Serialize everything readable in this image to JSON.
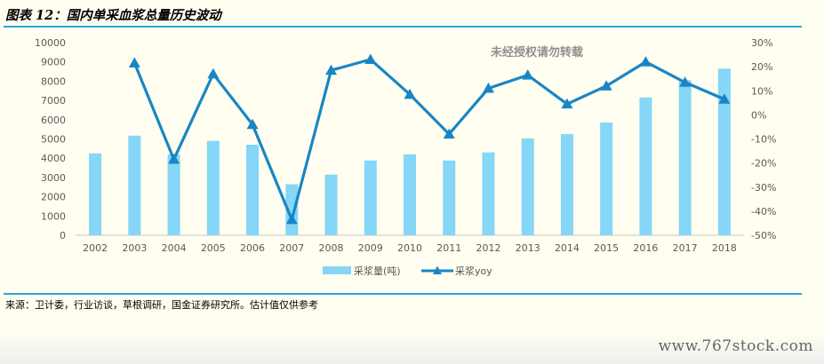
{
  "title": "图表 12：国内单采血浆总量历史波动",
  "source_note": "来源：卫计委，行业访谈，草根调研，国金证券研究所。估计值仅供参考",
  "watermark": "未经授权请勿转载",
  "site_watermark": "www.767stock.com",
  "colors": {
    "bar": "#85d6f7",
    "line": "#1886c6",
    "rule": "#2aa7df"
  },
  "chart_data": {
    "type": "bar+line",
    "categories": [
      "2002",
      "2003",
      "2004",
      "2005",
      "2006",
      "2007",
      "2008",
      "2009",
      "2010",
      "2011",
      "2012",
      "2013",
      "2014",
      "2015",
      "2016",
      "2017",
      "2018"
    ],
    "y_left_ticks": [
      "0",
      "1000",
      "2000",
      "3000",
      "4000",
      "5000",
      "6000",
      "7000",
      "8000",
      "9000",
      "10000"
    ],
    "y_left_range": [
      0,
      10000
    ],
    "y_right_ticks": [
      "-50%",
      "-40%",
      "-30%",
      "-20%",
      "-10%",
      "0%",
      "10%",
      "20%",
      "30%"
    ],
    "y_right_range": [
      -50,
      30
    ],
    "series": [
      {
        "name": "采浆量(吨)",
        "kind": "bar",
        "axis": "left",
        "values": [
          4250,
          5170,
          4200,
          4900,
          4700,
          2650,
          3150,
          3880,
          4200,
          3880,
          4300,
          5020,
          5250,
          5850,
          7150,
          8050,
          8650
        ]
      },
      {
        "name": "采浆yoy",
        "kind": "line",
        "axis": "right",
        "marker": "triangle",
        "values": [
          null,
          21.5,
          -18.5,
          17,
          -4,
          -43.5,
          18.5,
          23,
          8.5,
          -8,
          11,
          16.5,
          4.5,
          12,
          22,
          13.5,
          6.5
        ]
      }
    ],
    "legend_position": "bottom",
    "grid": false
  }
}
